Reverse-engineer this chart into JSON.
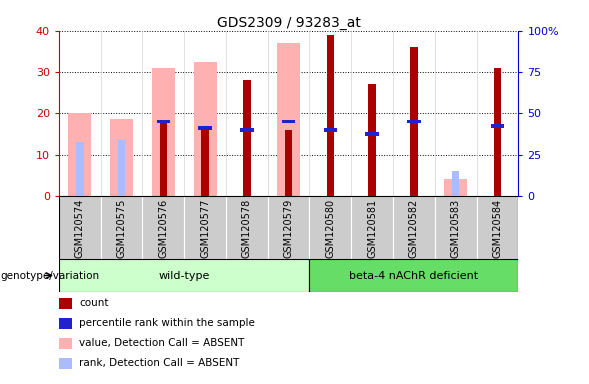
{
  "title": "GDS2309 / 93283_at",
  "samples": [
    "GSM120574",
    "GSM120575",
    "GSM120576",
    "GSM120577",
    "GSM120578",
    "GSM120579",
    "GSM120580",
    "GSM120581",
    "GSM120582",
    "GSM120583",
    "GSM120584"
  ],
  "count": [
    0,
    0,
    18,
    16,
    28,
    16,
    39,
    27,
    36,
    0,
    31
  ],
  "percentile": [
    0,
    0,
    18,
    16.5,
    16,
    18,
    16,
    15,
    18,
    0,
    17
  ],
  "value_absent": [
    20,
    18.5,
    31,
    32.5,
    0,
    37,
    0,
    0,
    0,
    4,
    0
  ],
  "rank_absent": [
    13,
    13.5,
    18,
    16.5,
    0,
    0,
    0,
    0,
    0,
    6,
    0
  ],
  "n_wildtype": 6,
  "ylim": [
    0,
    40
  ],
  "color_count": "#AA0000",
  "color_percentile": "#2222CC",
  "color_value_absent": "#FFB0B0",
  "color_rank_absent": "#AABBFF",
  "color_wildtype_bg": "#CCFFCC",
  "color_beta4_bg": "#66DD66",
  "color_gray_cell": "#CCCCCC",
  "color_axis_left": "#CC0000",
  "color_axis_right": "#0000CC",
  "legend_labels": [
    "count",
    "percentile rank within the sample",
    "value, Detection Call = ABSENT",
    "rank, Detection Call = ABSENT"
  ],
  "legend_colors": [
    "#AA0000",
    "#2222CC",
    "#FFB0B0",
    "#AABBFF"
  ]
}
